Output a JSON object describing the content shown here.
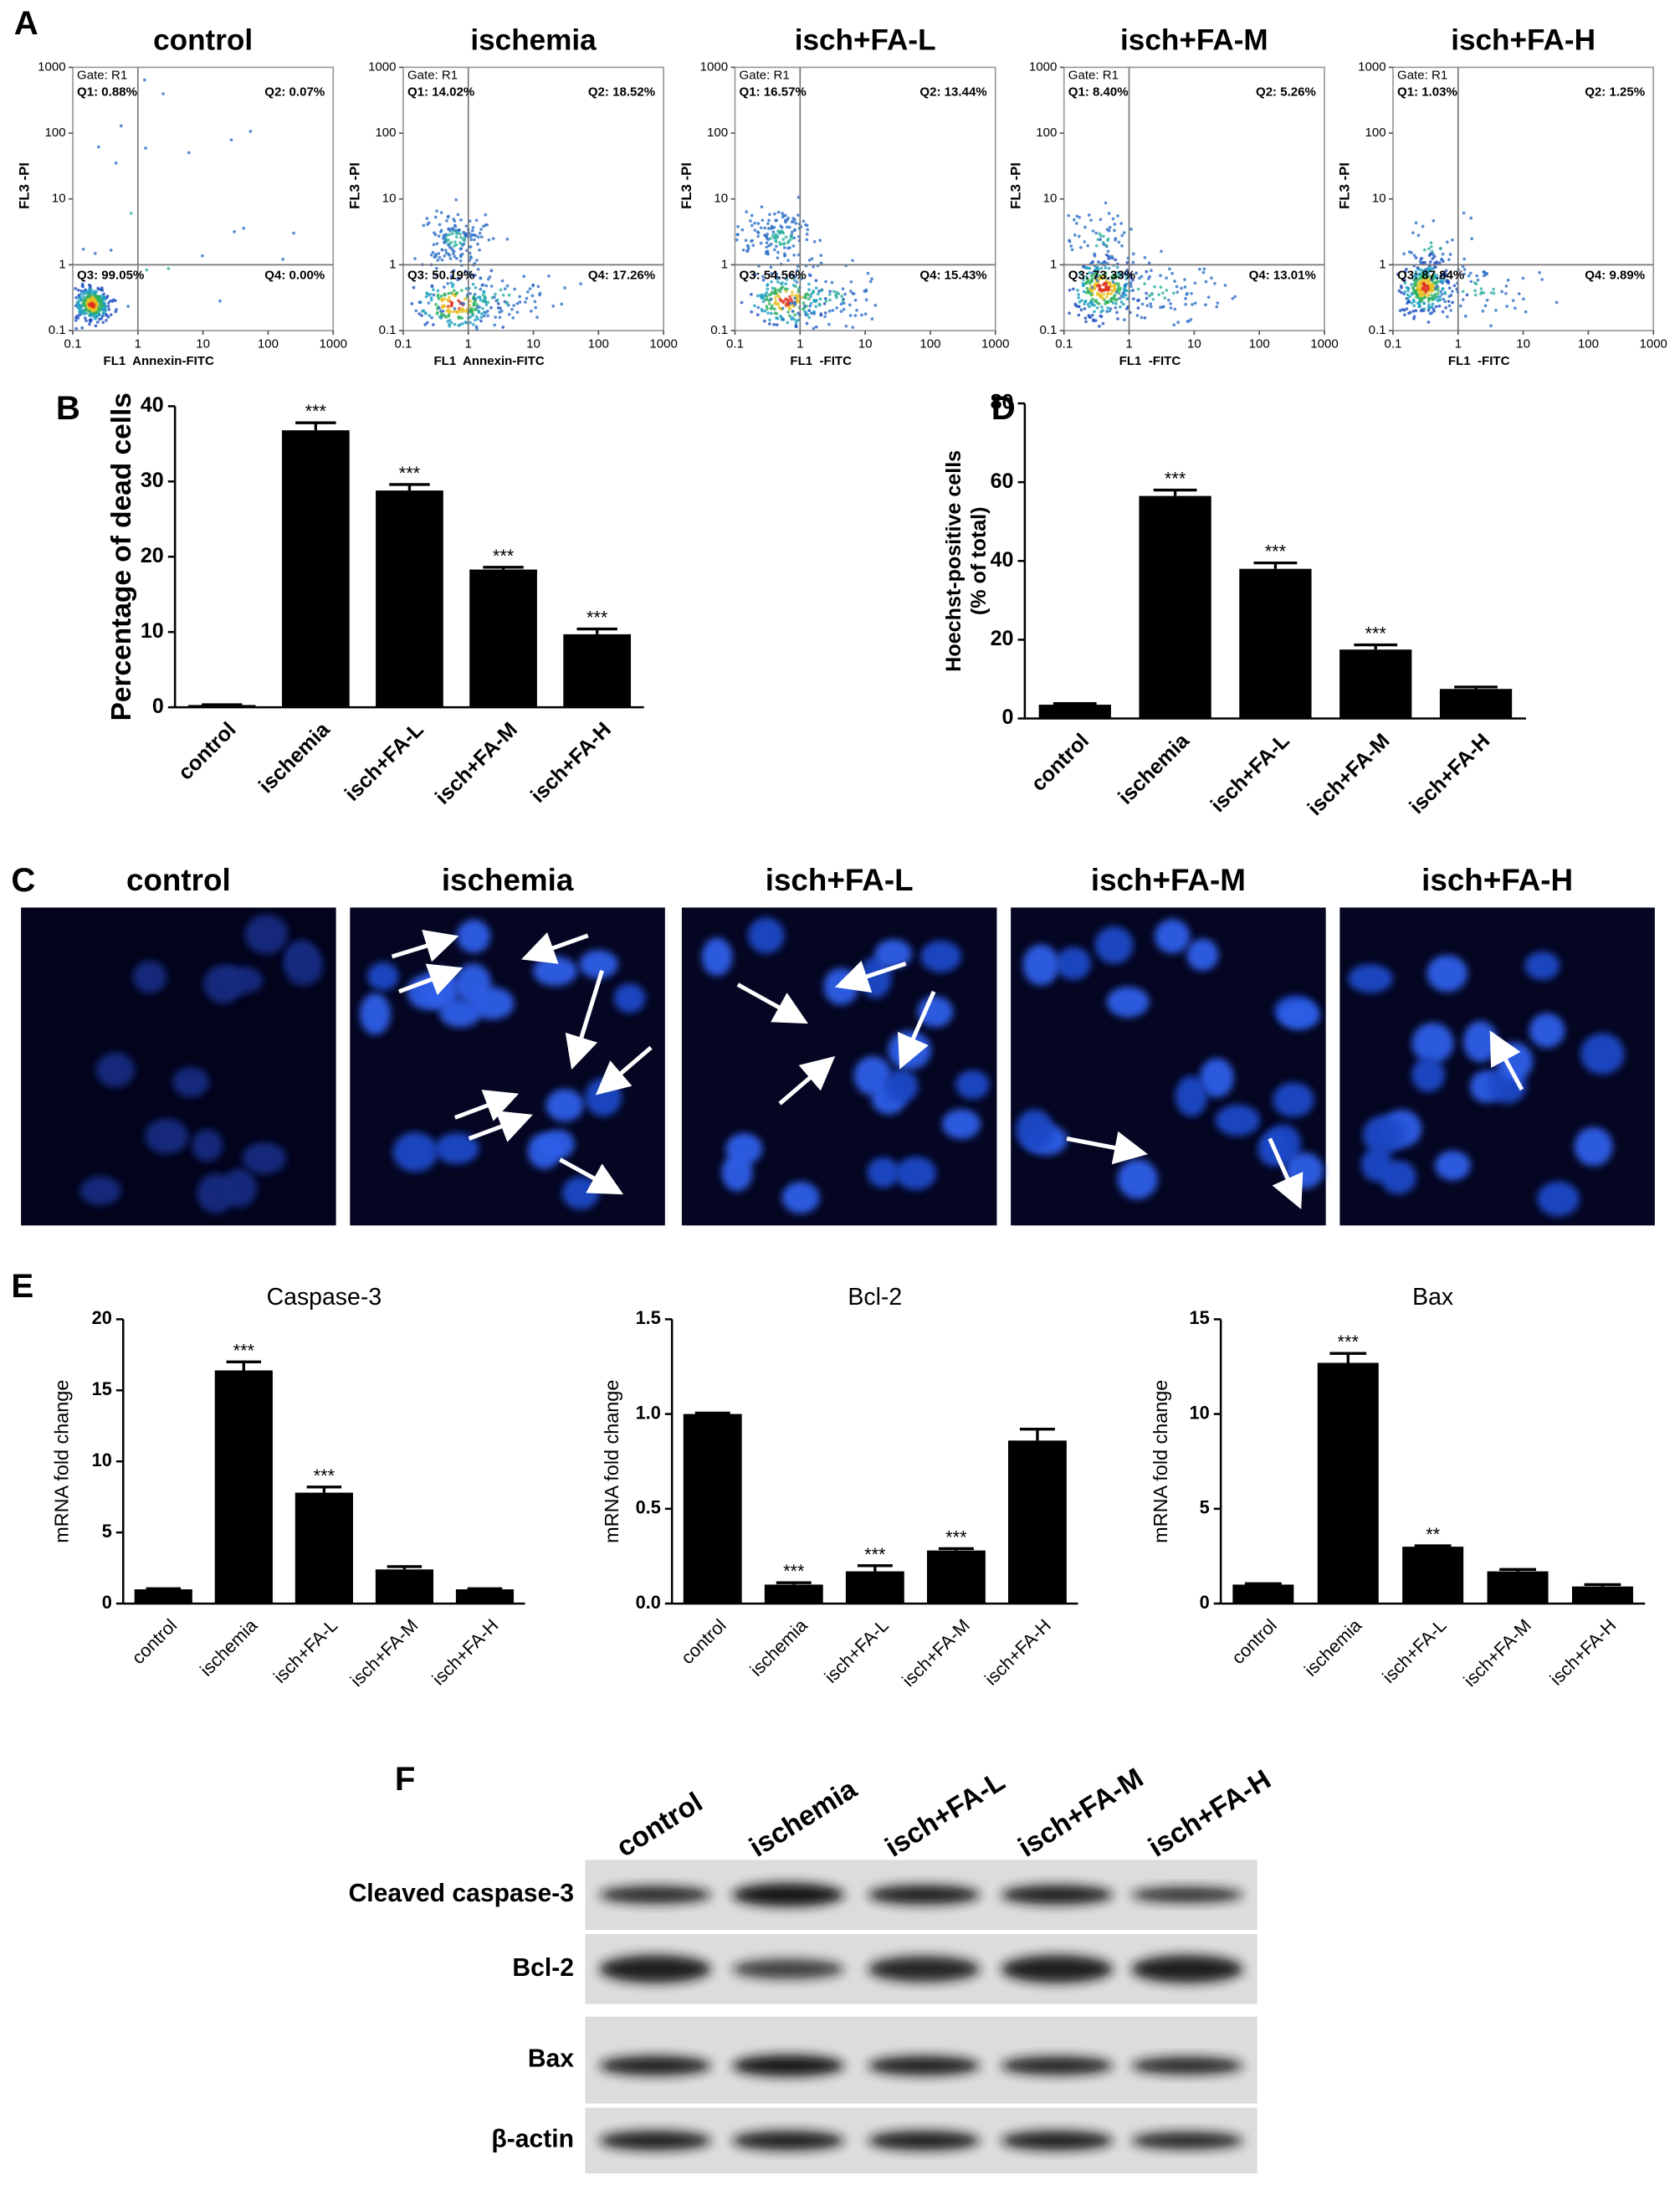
{
  "panel_labels": [
    "A",
    "B",
    "C",
    "D",
    "E",
    "F"
  ],
  "flow_cytometry": {
    "log": true,
    "xlim": [
      0.1,
      1000
    ],
    "ylim": [
      0.1,
      1000
    ],
    "xticks": [
      0.1,
      1,
      10,
      100,
      1000
    ],
    "yticks": [
      0.1,
      1,
      10,
      100,
      1000
    ],
    "y_label": "FL3 -PI",
    "gate": "Gate: R1",
    "panels": [
      {
        "title": "control",
        "x_label": "FL1  Annexin-FITC",
        "quadrants": [
          "Q1: 0.88%",
          "Q2: 0.07%",
          "Q3: 99.05%",
          "Q4: 0.00%"
        ]
      },
      {
        "title": "ischemia",
        "x_label": "FL1  Annexin-FITC",
        "quadrants": [
          "Q1: 14.02%",
          "Q2: 18.52%",
          "Q3: 50.19%",
          "Q4: 17.26%"
        ]
      },
      {
        "title": "isch+FA-L",
        "x_label": "FL1  -FITC",
        "quadrants": [
          "Q1: 16.57%",
          "Q2: 13.44%",
          "Q3: 54.56%",
          "Q4: 15.43%"
        ]
      },
      {
        "title": "isch+FA-M",
        "x_label": "FL1  -FITC",
        "quadrants": [
          "Q1: 8.40%",
          "Q2: 5.26%",
          "Q3: 73.33%",
          "Q4: 13.01%"
        ]
      },
      {
        "title": "isch+FA-H",
        "x_label": "FL1  -FITC",
        "quadrants": [
          "Q1: 1.03%",
          "Q2: 1.25%",
          "Q3: 87.84%",
          "Q4: 9.89%"
        ]
      }
    ]
  },
  "microscopy_titles": [
    "control",
    "ischemia",
    "isch+FA-L",
    "isch+FA-M",
    "isch+FA-H"
  ],
  "chart_data": [
    {
      "type": "bar",
      "y_label": "Percentage of dead cells",
      "categories": [
        "control",
        "ischemia",
        "isch+FA-L",
        "isch+FA-M",
        "isch+FA-H"
      ],
      "values": [
        0.3,
        36.8,
        28.8,
        18.3,
        9.7
      ],
      "errors": [
        0.05,
        1.0,
        0.8,
        0.3,
        0.7
      ],
      "significance": [
        null,
        "***",
        "***",
        "***",
        "***"
      ],
      "color": "#000000",
      "ylim": [
        0,
        40
      ],
      "yticks": [
        0,
        10,
        20,
        30,
        40
      ]
    },
    {
      "type": "bar",
      "y_label": [
        "Hoechst-positive cells",
        "(% of total)"
      ],
      "categories": [
        "control",
        "ischemia",
        "isch+FA-L",
        "isch+FA-M",
        "isch+FA-H"
      ],
      "values": [
        3.5,
        56.5,
        38,
        17.5,
        7.5
      ],
      "errors": [
        0.3,
        1.5,
        1.5,
        1.2,
        0.5
      ],
      "significance": [
        null,
        "***",
        "***",
        "***",
        null
      ],
      "color": "#000000",
      "ylim": [
        0,
        80
      ],
      "yticks": [
        0,
        20,
        40,
        60,
        80
      ]
    },
    {
      "type": "bar",
      "title": "Caspase-3",
      "y_label": "mRNA fold change",
      "categories": [
        "control",
        "ischemia",
        "isch+FA-L",
        "isch+FA-M",
        "isch+FA-H"
      ],
      "values": [
        1,
        16.4,
        7.8,
        2.4,
        1
      ],
      "errors": [
        0.05,
        0.6,
        0.4,
        0.2,
        0.05
      ],
      "significance": [
        null,
        "***",
        "***",
        null,
        null
      ],
      "color": "#000000",
      "ylim": [
        0,
        20
      ],
      "yticks": [
        0,
        5,
        10,
        15,
        20
      ]
    },
    {
      "type": "bar",
      "title": "Bcl-2",
      "y_label": "mRNA fold change",
      "categories": [
        "control",
        "ischemia",
        "isch+FA-L",
        "isch+FA-M",
        "isch+FA-H"
      ],
      "values": [
        1.0,
        0.1,
        0.17,
        0.28,
        0.86
      ],
      "errors": [
        0.005,
        0.01,
        0.03,
        0.01,
        0.06
      ],
      "significance": [
        null,
        "***",
        "***",
        "***",
        null
      ],
      "color": "#000000",
      "ylim": [
        0,
        1.5
      ],
      "yticks": [
        {
          "value": 0,
          "label": "0.0"
        },
        0.5,
        {
          "value": 1,
          "label": "1.0"
        },
        1.5
      ]
    },
    {
      "type": "bar",
      "title": "Bax",
      "y_label": "mRNA fold change",
      "categories": [
        "control",
        "ischemia",
        "isch+FA-L",
        "isch+FA-M",
        "isch+FA-H"
      ],
      "values": [
        1,
        12.7,
        3.0,
        1.7,
        0.9
      ],
      "errors": [
        0.05,
        0.5,
        0.05,
        0.1,
        0.1
      ],
      "significance": [
        null,
        "***",
        "**",
        null,
        null
      ],
      "color": "#000000",
      "ylim": [
        0,
        15
      ],
      "yticks": [
        0,
        5,
        10,
        15
      ]
    }
  ],
  "western_blot": {
    "lanes": [
      "control",
      "ischemia",
      "isch+FA-L",
      "isch+FA-M",
      "isch+FA-H"
    ],
    "rows": [
      "Cleaved caspase-3",
      "Bcl-2",
      "Bax",
      "β-actin"
    ]
  }
}
